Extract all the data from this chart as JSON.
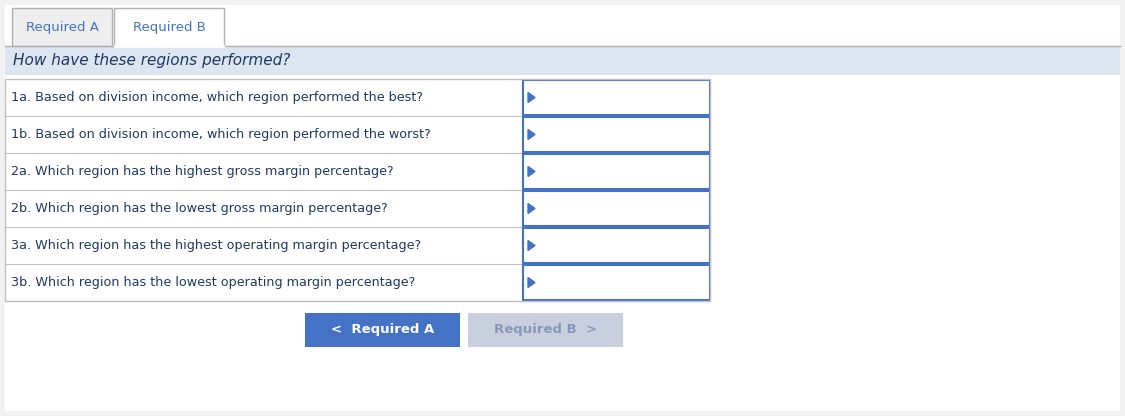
{
  "tab1_label": "Required A",
  "tab2_label": "Required B",
  "section_title": "How have these regions performed?",
  "questions": [
    "1a. Based on division income, which region performed the best?",
    "1b. Based on division income, which region performed the worst?",
    "2a. Which region has the highest gross margin percentage?",
    "2b. Which region has the lowest gross margin percentage?",
    "3a. Which region has the highest operating margin percentage?",
    "3b. Which region has the lowest operating margin percentage?"
  ],
  "fig_bg_color": "#f2f2f2",
  "content_bg_color": "#ffffff",
  "tab1_bg": "#eeeeee",
  "tab2_bg": "#ffffff",
  "tab_border_color": "#b0b0b0",
  "tab_text_color": "#4472c4",
  "section_header_bg": "#dce6f1",
  "section_header_text_color": "#1f3864",
  "question_text_color": "#1f3864",
  "table_bg": "#ffffff",
  "row_border_color": "#c0c0c0",
  "answer_box_border_color": "#4472c4",
  "answer_box_bg": "#ffffff",
  "answer_arrow_color": "#4472c4",
  "button1_bg": "#4472c4",
  "button1_text": "<  Required A",
  "button1_text_color": "#ffffff",
  "button2_bg": "#c8d0e0",
  "button2_text": "Required B  >",
  "button2_text_color": "#8898b8",
  "separator_color": "#b0b0b0",
  "fig_width": 11.25,
  "fig_height": 4.16,
  "dpi": 100
}
